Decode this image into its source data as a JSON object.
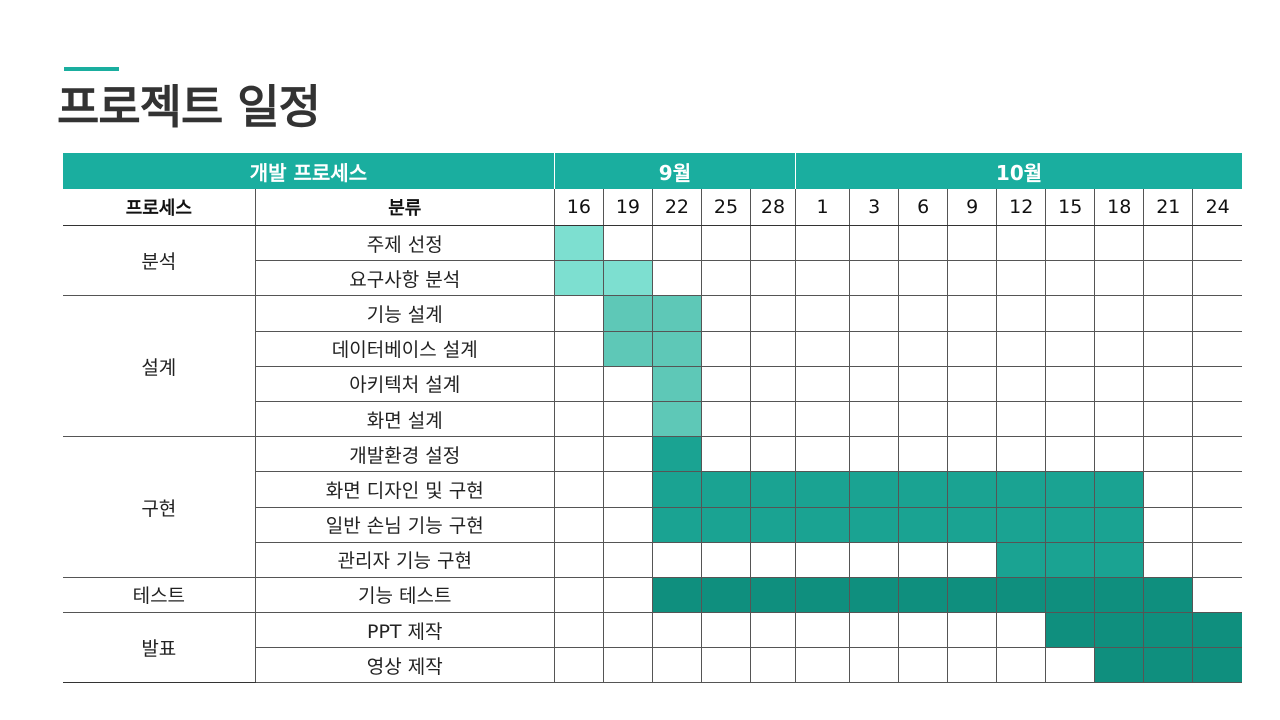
{
  "title": "프로젝트 일정",
  "header": {
    "process_group": "개발 프로세스",
    "months": [
      {
        "label": "9월",
        "span": 5
      },
      {
        "label": "10월",
        "span": 9
      }
    ],
    "process_col": "프로세스",
    "category_col": "분류",
    "days": [
      "16",
      "19",
      "22",
      "25",
      "28",
      "1",
      "3",
      "6",
      "9",
      "12",
      "15",
      "18",
      "21",
      "24"
    ]
  },
  "colors": {
    "header_bg": "#1aae9f",
    "phase_analysis": "#7ddfd0",
    "phase_design": "#5ec8b7",
    "phase_implementation": "#1aa392",
    "phase_test_release": "#0f8f7e"
  },
  "phases": [
    {
      "name": "분석",
      "color_key": "phase_analysis",
      "tasks": [
        {
          "name": "주제 선정",
          "start": 0,
          "end": 0
        },
        {
          "name": "요구사항 분석",
          "start": 0,
          "end": 1
        }
      ]
    },
    {
      "name": "설계",
      "color_key": "phase_design",
      "tasks": [
        {
          "name": "기능 설계",
          "start": 1,
          "end": 2
        },
        {
          "name": "데이터베이스 설계",
          "start": 1,
          "end": 2
        },
        {
          "name": "아키텍처 설계",
          "start": 2,
          "end": 2
        },
        {
          "name": "화면 설계",
          "start": 2,
          "end": 2
        }
      ]
    },
    {
      "name": "구현",
      "color_key": "phase_implementation",
      "tasks": [
        {
          "name": "개발환경 설정",
          "start": 2,
          "end": 2
        },
        {
          "name": "화면 디자인 및 구현",
          "start": 2,
          "end": 11
        },
        {
          "name": "일반 손님 기능 구현",
          "start": 2,
          "end": 11
        },
        {
          "name": "관리자 기능 구현",
          "start": 9,
          "end": 11
        }
      ]
    },
    {
      "name": "테스트",
      "color_key": "phase_test_release",
      "tasks": [
        {
          "name": "기능 테스트",
          "start": 2,
          "end": 12
        }
      ]
    },
    {
      "name": "발표",
      "color_key": "phase_test_release",
      "tasks": [
        {
          "name": "PPT 제작",
          "start": 10,
          "end": 13
        },
        {
          "name": "영상 제작",
          "start": 11,
          "end": 13
        }
      ]
    }
  ]
}
